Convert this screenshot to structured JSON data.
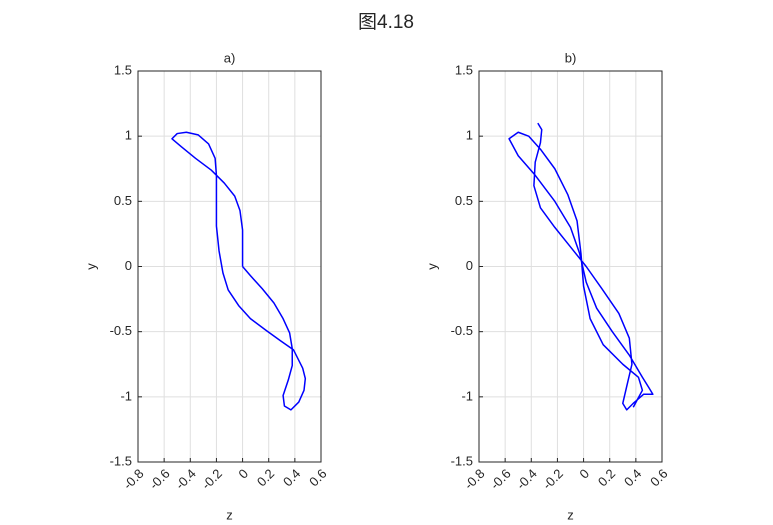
{
  "title": "图4.18",
  "chart_data": [
    {
      "type": "line",
      "title": "a)",
      "x_label": "z",
      "y_label": "y",
      "xlim": [
        -0.8,
        0.6
      ],
      "ylim": [
        -1.5,
        1.5
      ],
      "xticks": [
        -0.8,
        -0.6,
        -0.4,
        -0.2,
        0,
        0.2,
        0.4,
        0.6
      ],
      "yticks": [
        -1.5,
        -1,
        -0.5,
        0,
        0.5,
        1,
        1.5
      ],
      "grid": true,
      "series": [
        {
          "color": "#0000ff",
          "x": [
            0,
            0.06,
            0.15,
            0.24,
            0.31,
            0.36,
            0.38,
            0.38,
            0.35,
            0.31,
            0.32,
            0.37,
            0.43,
            0.47,
            0.48,
            0.46,
            0.39,
            0.29,
            0.18,
            0.06,
            -0.03,
            -0.11,
            -0.15,
            -0.18,
            -0.2,
            -0.2,
            -0.2,
            -0.21,
            -0.26,
            -0.34,
            -0.43,
            -0.5,
            -0.54,
            -0.47,
            -0.36,
            -0.24,
            -0.14,
            -0.06,
            -0.02,
            0,
            0
          ],
          "y": [
            0,
            -0.07,
            -0.17,
            -0.28,
            -0.4,
            -0.51,
            -0.63,
            -0.76,
            -0.87,
            -0.99,
            -1.07,
            -1.1,
            -1.04,
            -0.95,
            -0.86,
            -0.78,
            -0.64,
            -0.57,
            -0.49,
            -0.4,
            -0.3,
            -0.18,
            -0.05,
            0.12,
            0.31,
            0.5,
            0.7,
            0.83,
            0.94,
            1.01,
            1.03,
            1.02,
            0.98,
            0.92,
            0.83,
            0.74,
            0.64,
            0.54,
            0.43,
            0.28,
            0
          ]
        }
      ]
    },
    {
      "type": "line",
      "title": "b)",
      "x_label": "z",
      "y_label": "y",
      "xlim": [
        -0.8,
        0.6
      ],
      "ylim": [
        -1.5,
        1.5
      ],
      "xticks": [
        -0.8,
        -0.6,
        -0.4,
        -0.2,
        0,
        0.2,
        0.4,
        0.6
      ],
      "yticks": [
        -1.5,
        -1,
        -0.5,
        0,
        0.5,
        1,
        1.5
      ],
      "grid": true,
      "series": [
        {
          "color": "#0000ff",
          "x": [
            -0.35,
            -0.32,
            -0.33,
            -0.37,
            -0.38,
            -0.33,
            -0.22,
            -0.1,
            0.02,
            0.14,
            0.27,
            0.35,
            0.37,
            0.33,
            0.3,
            0.33,
            0.38,
            0.46,
            0.53,
            0.5,
            0.45,
            0.35,
            0.22,
            0.1,
            0.02,
            -0.03,
            -0.1,
            -0.22,
            -0.37,
            -0.5,
            -0.57,
            -0.5,
            -0.42,
            -0.33,
            -0.22,
            -0.12,
            -0.05,
            -0.02,
            0,
            0.05,
            0.15,
            0.3,
            0.42,
            0.45,
            0.38
          ],
          "y": [
            1.1,
            1.05,
            0.95,
            0.8,
            0.62,
            0.45,
            0.3,
            0.15,
            0,
            -0.17,
            -0.36,
            -0.55,
            -0.75,
            -0.92,
            -1.05,
            -1.1,
            -1.05,
            -0.98,
            -0.98,
            -0.93,
            -0.85,
            -0.68,
            -0.5,
            -0.32,
            -0.12,
            0.1,
            0.3,
            0.5,
            0.7,
            0.85,
            0.98,
            1.03,
            1.0,
            0.9,
            0.75,
            0.55,
            0.35,
            0.1,
            -0.15,
            -0.4,
            -0.6,
            -0.75,
            -0.85,
            -0.95,
            -1.08
          ]
        }
      ]
    }
  ]
}
